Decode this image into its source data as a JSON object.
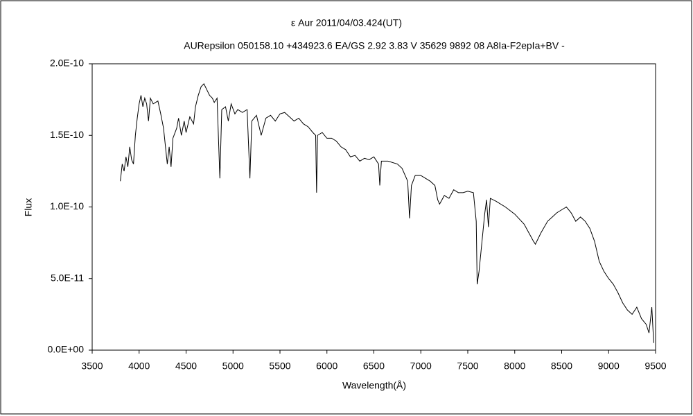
{
  "chart_data": {
    "type": "line",
    "title": "ε Aur   2011/04/03.424(UT)",
    "subtitle": "AURepsilon 050158.10 +434923.6 EA/GS 2.92 3.83 V 35629 9892 08 A8Ia-F2epIa+BV -",
    "x_label": "Wavelength(Å)",
    "y_label": "Flux",
    "xlim": [
      3500,
      9500
    ],
    "xticks": [
      3500,
      4000,
      4500,
      5000,
      5500,
      6000,
      6500,
      7000,
      7500,
      8000,
      8500,
      9000,
      9500
    ],
    "ylim": [
      0,
      2e-10
    ],
    "yticks": [
      {
        "value": 0,
        "label": "0.0E+00"
      },
      {
        "value": 5e-11,
        "label": "5.0E-11"
      },
      {
        "value": 1e-10,
        "label": "1.0E-10"
      },
      {
        "value": 1.5e-10,
        "label": "1.5E-10"
      },
      {
        "value": 2e-10,
        "label": "2.0E-10"
      }
    ],
    "grid": false,
    "series": [
      {
        "color": "#000000",
        "x": [
          3800,
          3820,
          3840,
          3860,
          3880,
          3900,
          3920,
          3940,
          3960,
          3980,
          4000,
          4020,
          4040,
          4060,
          4080,
          4100,
          4120,
          4150,
          4200,
          4230,
          4260,
          4300,
          4320,
          4340,
          4360,
          4400,
          4420,
          4450,
          4480,
          4500,
          4540,
          4580,
          4600,
          4630,
          4660,
          4690,
          4720,
          4750,
          4780,
          4800,
          4830,
          4860,
          4880,
          4920,
          4950,
          4980,
          5020,
          5050,
          5100,
          5150,
          5180,
          5200,
          5250,
          5300,
          5350,
          5400,
          5450,
          5500,
          5550,
          5600,
          5650,
          5700,
          5750,
          5800,
          5850,
          5880,
          5890,
          5900,
          5950,
          6000,
          6050,
          6100,
          6150,
          6200,
          6250,
          6300,
          6350,
          6400,
          6450,
          6500,
          6550,
          6563,
          6580,
          6650,
          6750,
          6800,
          6860,
          6880,
          6900,
          6940,
          7000,
          7100,
          7150,
          7180,
          7200,
          7250,
          7300,
          7350,
          7400,
          7450,
          7500,
          7560,
          7590,
          7600,
          7620,
          7650,
          7680,
          7700,
          7720,
          7740,
          7800,
          7900,
          8000,
          8100,
          8200,
          8220,
          8280,
          8350,
          8400,
          8450,
          8500,
          8550,
          8600,
          8650,
          8700,
          8750,
          8800,
          8850,
          8900,
          8950,
          9000,
          9050,
          9100,
          9150,
          9200,
          9250,
          9300,
          9350,
          9400,
          9430,
          9460,
          9480
        ],
        "values": [
          1.18e-10,
          1.3e-10,
          1.25e-10,
          1.35e-10,
          1.28e-10,
          1.42e-10,
          1.33e-10,
          1.3e-10,
          1.5e-10,
          1.62e-10,
          1.72e-10,
          1.78e-10,
          1.7e-10,
          1.76e-10,
          1.72e-10,
          1.6e-10,
          1.76e-10,
          1.72e-10,
          1.74e-10,
          1.65e-10,
          1.55e-10,
          1.3e-10,
          1.42e-10,
          1.28e-10,
          1.48e-10,
          1.55e-10,
          1.62e-10,
          1.5e-10,
          1.6e-10,
          1.52e-10,
          1.63e-10,
          1.58e-10,
          1.7e-10,
          1.78e-10,
          1.84e-10,
          1.86e-10,
          1.82e-10,
          1.78e-10,
          1.76e-10,
          1.73e-10,
          1.76e-10,
          1.2e-10,
          1.68e-10,
          1.7e-10,
          1.6e-10,
          1.72e-10,
          1.65e-10,
          1.68e-10,
          1.66e-10,
          1.68e-10,
          1.2e-10,
          1.6e-10,
          1.64e-10,
          1.5e-10,
          1.62e-10,
          1.64e-10,
          1.6e-10,
          1.65e-10,
          1.66e-10,
          1.63e-10,
          1.6e-10,
          1.62e-10,
          1.58e-10,
          1.56e-10,
          1.52e-10,
          1.5e-10,
          1.1e-10,
          1.5e-10,
          1.52e-10,
          1.48e-10,
          1.48e-10,
          1.46e-10,
          1.42e-10,
          1.4e-10,
          1.35e-10,
          1.36e-10,
          1.32e-10,
          1.34e-10,
          1.33e-10,
          1.35e-10,
          1.3e-10,
          1.15e-10,
          1.32e-10,
          1.32e-10,
          1.3e-10,
          1.27e-10,
          1.18e-10,
          9.2e-11,
          1.15e-10,
          1.22e-10,
          1.22e-10,
          1.18e-10,
          1.15e-10,
          1.05e-10,
          1.02e-10,
          1.08e-10,
          1.06e-10,
          1.12e-10,
          1.1e-10,
          1.1e-10,
          1.11e-10,
          1.1e-10,
          9e-11,
          4.6e-11,
          5.5e-11,
          7.5e-11,
          9.5e-11,
          1.05e-10,
          8.6e-11,
          1.06e-10,
          1.04e-10,
          1e-10,
          9.5e-11,
          8.8e-11,
          7.6e-11,
          7.4e-11,
          8.2e-11,
          9e-11,
          9.3e-11,
          9.6e-11,
          9.8e-11,
          1e-10,
          9.6e-11,
          9e-11,
          9.3e-11,
          9e-11,
          8.5e-11,
          7.6e-11,
          6.2e-11,
          5.5e-11,
          5e-11,
          4.6e-11,
          4e-11,
          3.3e-11,
          2.8e-11,
          2.5e-11,
          3e-11,
          2.2e-11,
          1.8e-11,
          1.2e-11,
          3e-11,
          5e-12
        ]
      }
    ]
  }
}
